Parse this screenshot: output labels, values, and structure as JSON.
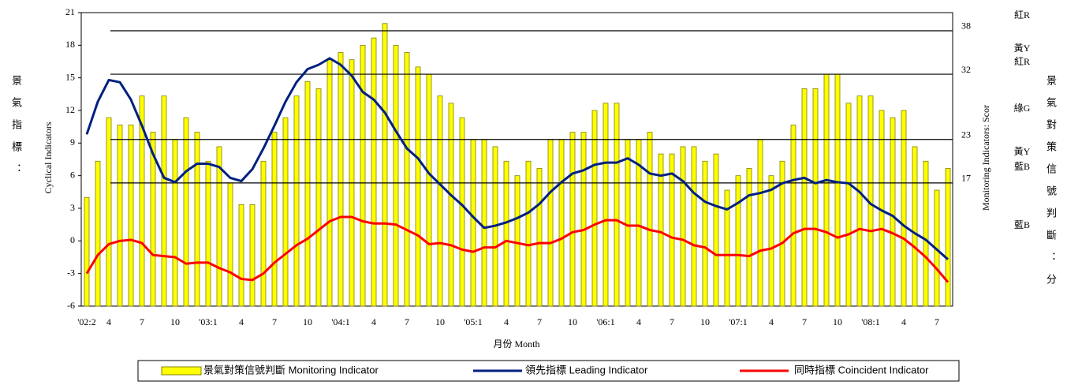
{
  "chart_data": {
    "type": "bar-line",
    "y_title": "Cyclical Indicators",
    "y2_title": "Monitoring Indicators: Scor",
    "x_title": "月份 Month",
    "left_side_label": "景氣指標：",
    "right_side_label": "景氣對策信號判斷：分",
    "signal_labels": [
      "紅R",
      "黃Y",
      "紅R",
      "綠G",
      "黃Y",
      "藍B",
      "藍B"
    ],
    "categories": [
      "'02:2",
      null,
      "4",
      null,
      null,
      "7",
      null,
      null,
      "10",
      null,
      null,
      "'03:1",
      null,
      null,
      "4",
      null,
      null,
      "7",
      null,
      null,
      "10",
      null,
      null,
      "'04:1",
      null,
      null,
      "4",
      null,
      null,
      "7",
      null,
      null,
      "10",
      null,
      null,
      "'05:1",
      null,
      null,
      "4",
      null,
      null,
      "7",
      null,
      null,
      "10",
      null,
      null,
      "'06:1",
      null,
      null,
      "4",
      null,
      null,
      "7",
      null,
      null,
      "10",
      null,
      null,
      "'07:1",
      null,
      null,
      "4",
      null,
      null,
      "7",
      null,
      null,
      "10",
      null,
      null,
      "'08:1",
      null,
      null,
      "4",
      null,
      null,
      "7",
      null
    ],
    "series": [
      {
        "name": "景氣對策信號判斷 Monitoring Indicator",
        "type": "bar",
        "axis": "y2",
        "color": "#ffff00",
        "edge": "#808000",
        "values": [
          15,
          20,
          26,
          25,
          25,
          29,
          24,
          29,
          23,
          26,
          24,
          20,
          22,
          17,
          14,
          14,
          20,
          24,
          26,
          29,
          31,
          30,
          34,
          35,
          34,
          36,
          37,
          39,
          36,
          35,
          33,
          32,
          29,
          28,
          26,
          23,
          23,
          22,
          20,
          18,
          20,
          19,
          23,
          23,
          24,
          24,
          27,
          28,
          28,
          23,
          23,
          24,
          21,
          21,
          22,
          22,
          20,
          21,
          16,
          18,
          19,
          23,
          18,
          20,
          25,
          30,
          30,
          32,
          32,
          28,
          29,
          29,
          27,
          26,
          27,
          22,
          20,
          16,
          19
        ]
      },
      {
        "name": "領先指標 Leading Indicator",
        "type": "line",
        "color": "#002080",
        "values": [
          9.8,
          12.8,
          14.8,
          14.6,
          13,
          10.6,
          8,
          5.8,
          5.4,
          6.4,
          7.1,
          7.1,
          6.8,
          5.8,
          5.5,
          6.6,
          8.5,
          10.6,
          12.8,
          14.6,
          15.8,
          16.2,
          16.8,
          16.2,
          15.2,
          13.7,
          13,
          11.8,
          10.1,
          8.5,
          7.6,
          6.2,
          5.2,
          4.2,
          3.3,
          2.2,
          1.2,
          1.4,
          1.7,
          2.1,
          2.6,
          3.4,
          4.5,
          5.4,
          6.2,
          6.5,
          7,
          7.2,
          7.2,
          7.6,
          7,
          6.2,
          6,
          6.2,
          5.5,
          4.4,
          3.6,
          3.2,
          2.9,
          3.5,
          4.2,
          4.4,
          4.7,
          5.3,
          5.6,
          5.8,
          5.3,
          5.6,
          5.4,
          5.3,
          4.5,
          3.4,
          2.8,
          2.3,
          1.4,
          0.7,
          0.1,
          -0.8,
          -1.7
        ]
      },
      {
        "name": "同時指標 Coincident Indicator",
        "type": "line",
        "color": "#ff0000",
        "values": [
          -3,
          -1.3,
          -0.3,
          0,
          0.1,
          -0.2,
          -1.3,
          -1.4,
          -1.5,
          -2.1,
          -2,
          -2,
          -2.5,
          -2.9,
          -3.5,
          -3.6,
          -3,
          -2,
          -1.2,
          -0.4,
          0.2,
          1,
          1.8,
          2.2,
          2.2,
          1.8,
          1.6,
          1.6,
          1.5,
          1,
          0.5,
          -0.3,
          -0.2,
          -0.4,
          -0.8,
          -1,
          -0.6,
          -0.6,
          0,
          -0.2,
          -0.4,
          -0.2,
          -0.2,
          0.2,
          0.8,
          1,
          1.5,
          1.9,
          1.9,
          1.4,
          1.4,
          1,
          0.8,
          0.3,
          0.1,
          -0.4,
          -0.6,
          -1.3,
          -1.3,
          -1.3,
          -1.4,
          -0.9,
          -0.7,
          -0.2,
          0.7,
          1.1,
          1.1,
          0.8,
          0.3,
          0.6,
          1.1,
          0.9,
          1.1,
          0.7,
          0.2,
          -0.6,
          -1.5,
          -2.6,
          -3.8
        ]
      }
    ],
    "ylim": [
      -6,
      21
    ],
    "yticks": [
      -6,
      -3,
      0,
      3,
      6,
      9,
      12,
      15,
      18,
      21
    ],
    "y2lim": [
      0,
      40.5
    ],
    "y2ticks": [
      17,
      23,
      32,
      38
    ],
    "y2grid": true,
    "legend": "bottom"
  }
}
